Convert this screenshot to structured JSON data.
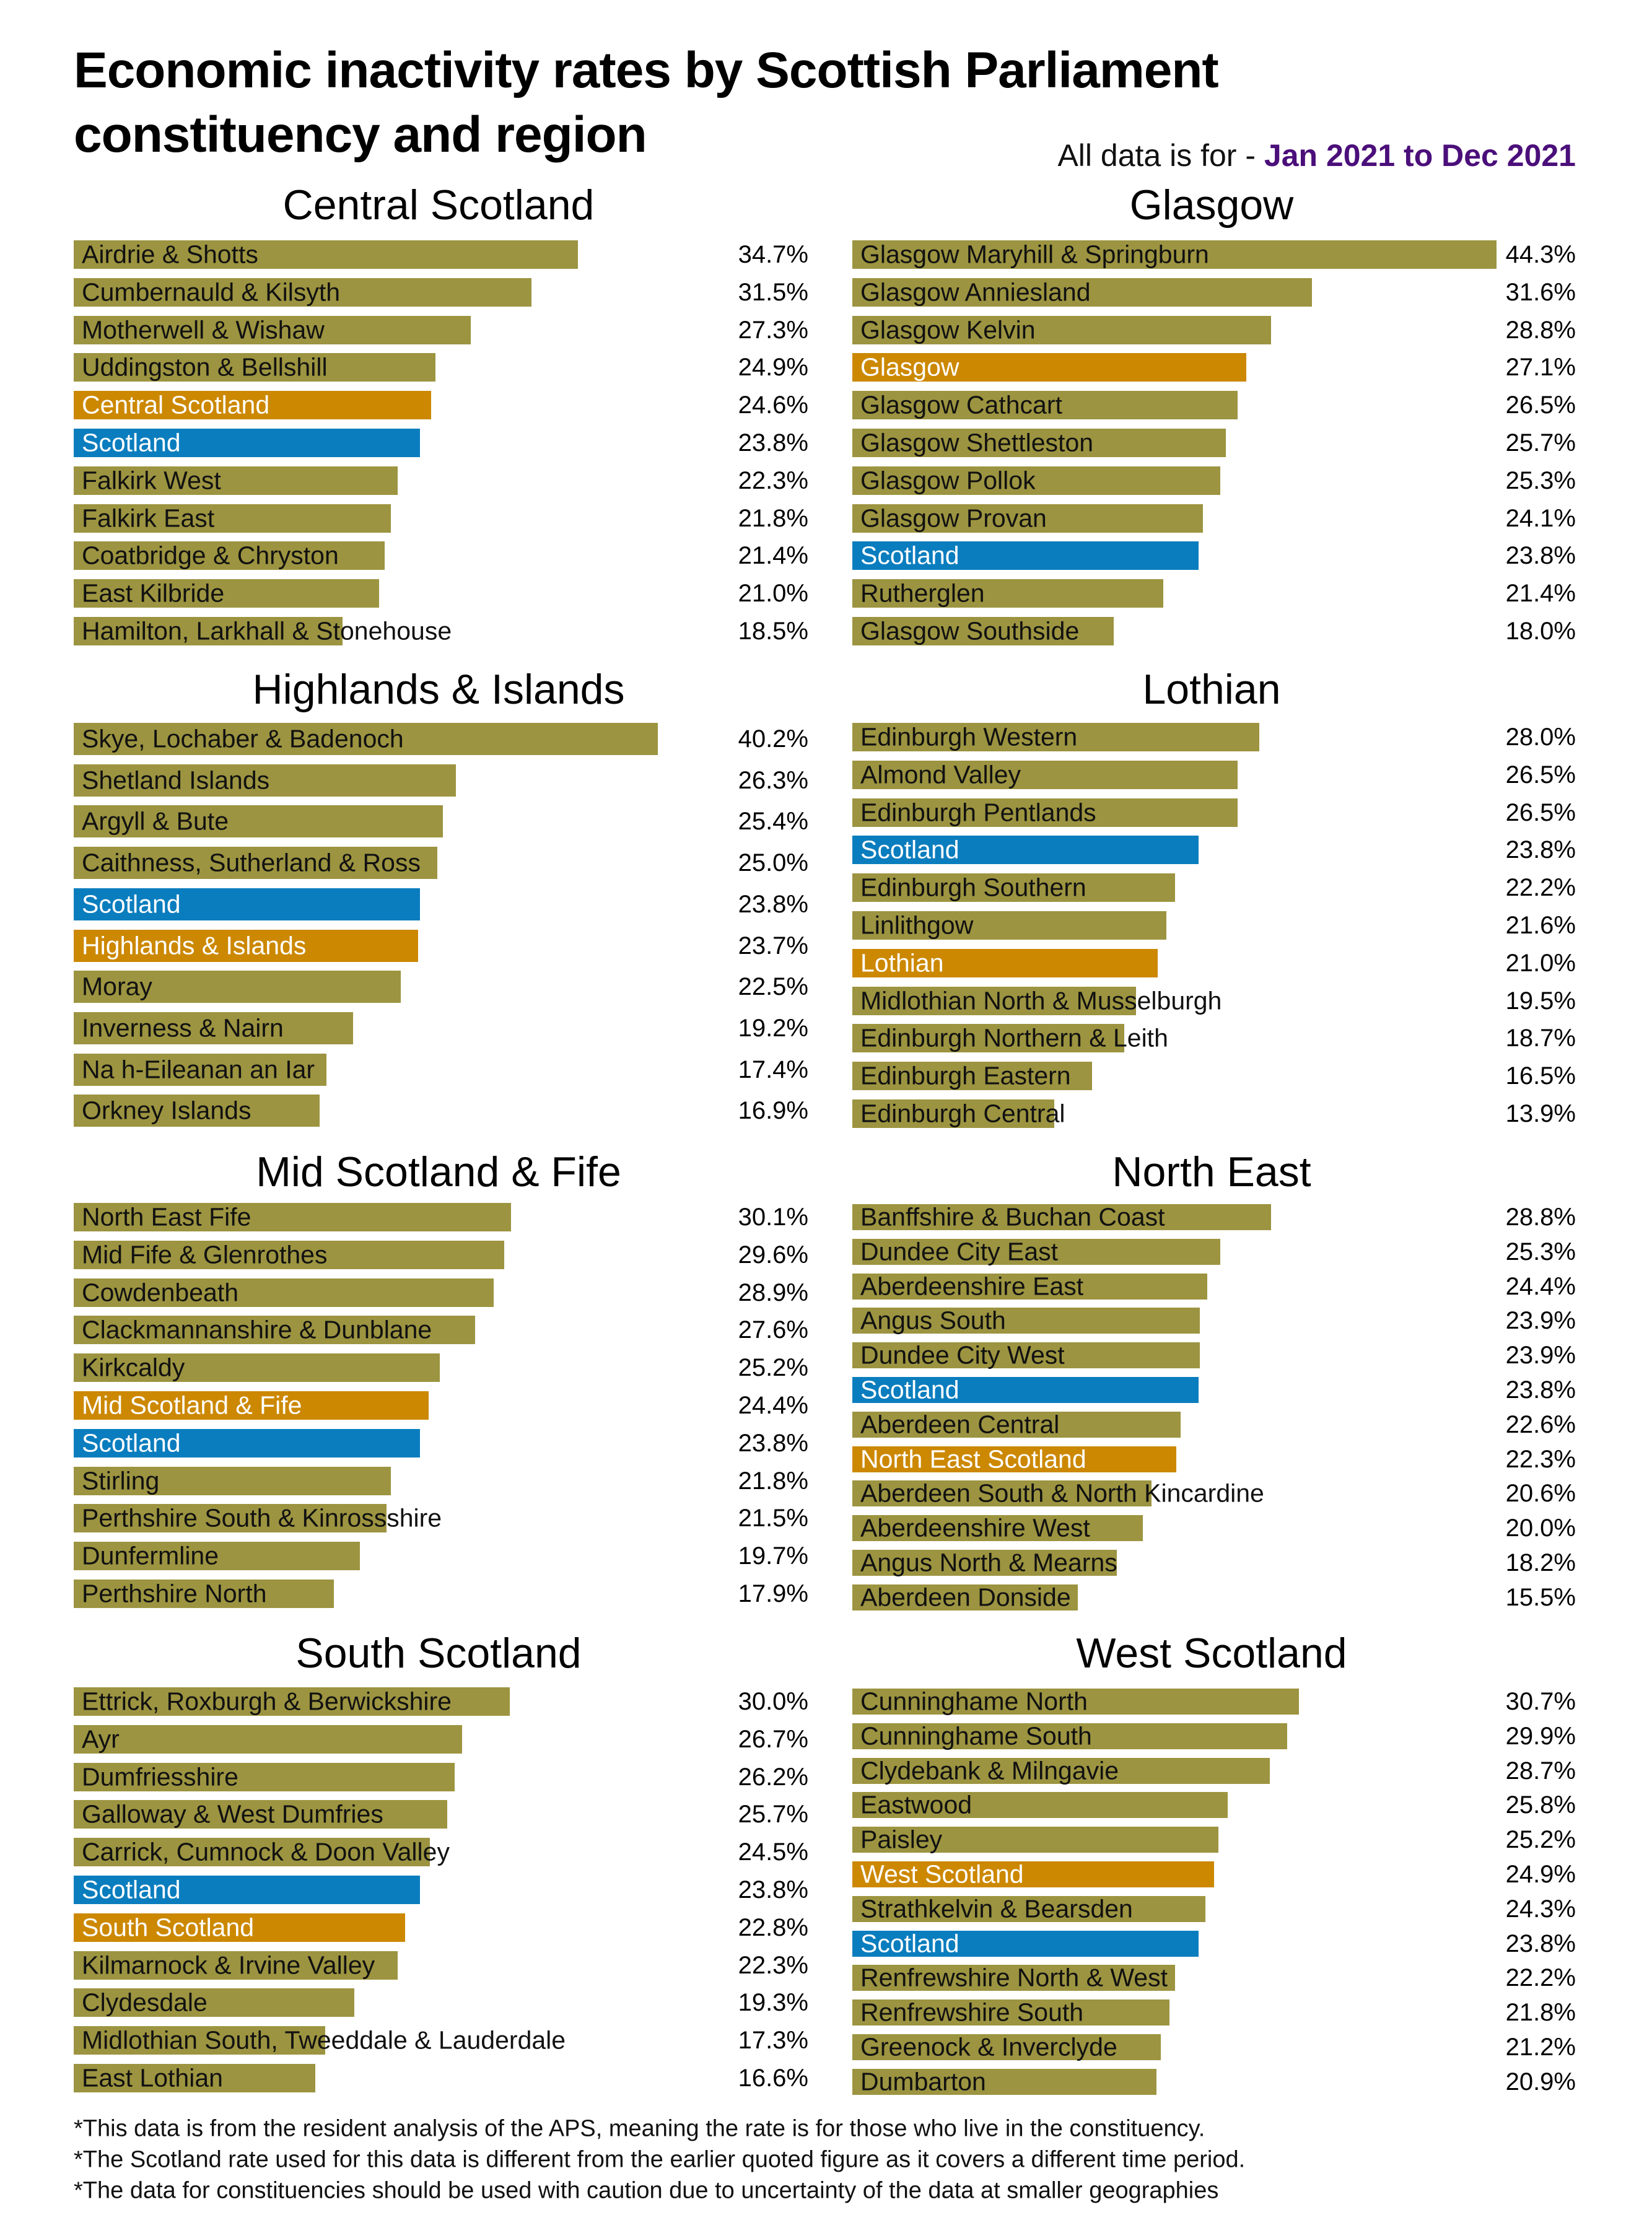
{
  "title_line1": "Economic inactivity rates by Scottish Parliament",
  "title_line2": "constituency and region",
  "subtitle_lead": "All data is for - ",
  "subtitle_period": "Jan 2021 to Dec 2021",
  "colors": {
    "constituency": "#9C9440",
    "region": "#CC8800",
    "scotland": "#0A7DBE",
    "period": "#4B0F7A"
  },
  "chart_data": {
    "type": "bar",
    "orientation": "horizontal",
    "unit": "%",
    "panels": [
      {
        "title": "Central Scotland",
        "rows": [
          {
            "label": "Airdrie & Shotts",
            "value": 34.7,
            "kind": "constituency"
          },
          {
            "label": "Cumbernauld & Kilsyth",
            "value": 31.5,
            "kind": "constituency"
          },
          {
            "label": "Motherwell & Wishaw",
            "value": 27.3,
            "kind": "constituency"
          },
          {
            "label": "Uddingston & Bellshill",
            "value": 24.9,
            "kind": "constituency"
          },
          {
            "label": "Central Scotland",
            "value": 24.6,
            "kind": "region"
          },
          {
            "label": "Scotland",
            "value": 23.8,
            "kind": "scotland"
          },
          {
            "label": "Falkirk West",
            "value": 22.3,
            "kind": "constituency"
          },
          {
            "label": "Falkirk East",
            "value": 21.8,
            "kind": "constituency"
          },
          {
            "label": "Coatbridge & Chryston",
            "value": 21.4,
            "kind": "constituency"
          },
          {
            "label": "East Kilbride",
            "value": 21.0,
            "kind": "constituency"
          },
          {
            "label": "Hamilton, Larkhall & Stonehouse",
            "value": 18.5,
            "kind": "constituency"
          }
        ]
      },
      {
        "title": "Glasgow",
        "rows": [
          {
            "label": "Glasgow Maryhill & Springburn",
            "value": 44.3,
            "kind": "constituency"
          },
          {
            "label": "Glasgow Anniesland",
            "value": 31.6,
            "kind": "constituency"
          },
          {
            "label": "Glasgow Kelvin",
            "value": 28.8,
            "kind": "constituency"
          },
          {
            "label": "Glasgow",
            "value": 27.1,
            "kind": "region"
          },
          {
            "label": "Glasgow Cathcart",
            "value": 26.5,
            "kind": "constituency"
          },
          {
            "label": "Glasgow Shettleston",
            "value": 25.7,
            "kind": "constituency"
          },
          {
            "label": "Glasgow Pollok",
            "value": 25.3,
            "kind": "constituency"
          },
          {
            "label": "Glasgow Provan",
            "value": 24.1,
            "kind": "constituency"
          },
          {
            "label": "Scotland",
            "value": 23.8,
            "kind": "scotland"
          },
          {
            "label": "Rutherglen",
            "value": 21.4,
            "kind": "constituency"
          },
          {
            "label": "Glasgow Southside",
            "value": 18.0,
            "kind": "constituency"
          }
        ]
      },
      {
        "title": "Highlands & Islands",
        "rows": [
          {
            "label": "Skye, Lochaber & Badenoch",
            "value": 40.2,
            "kind": "constituency"
          },
          {
            "label": "Shetland Islands",
            "value": 26.3,
            "kind": "constituency"
          },
          {
            "label": "Argyll & Bute",
            "value": 25.4,
            "kind": "constituency"
          },
          {
            "label": "Caithness, Sutherland & Ross",
            "value": 25.0,
            "kind": "constituency"
          },
          {
            "label": "Scotland",
            "value": 23.8,
            "kind": "scotland"
          },
          {
            "label": "Highlands & Islands",
            "value": 23.7,
            "kind": "region"
          },
          {
            "label": "Moray",
            "value": 22.5,
            "kind": "constituency"
          },
          {
            "label": "Inverness & Nairn",
            "value": 19.2,
            "kind": "constituency"
          },
          {
            "label": "Na h-Eileanan an Iar",
            "value": 17.4,
            "kind": "constituency"
          },
          {
            "label": "Orkney Islands",
            "value": 16.9,
            "kind": "constituency"
          }
        ]
      },
      {
        "title": "Lothian",
        "rows": [
          {
            "label": "Edinburgh Western",
            "value": 28.0,
            "kind": "constituency"
          },
          {
            "label": "Almond Valley",
            "value": 26.5,
            "kind": "constituency"
          },
          {
            "label": "Edinburgh Pentlands",
            "value": 26.5,
            "kind": "constituency"
          },
          {
            "label": "Scotland",
            "value": 23.8,
            "kind": "scotland"
          },
          {
            "label": "Edinburgh Southern",
            "value": 22.2,
            "kind": "constituency"
          },
          {
            "label": "Linlithgow",
            "value": 21.6,
            "kind": "constituency"
          },
          {
            "label": "Lothian",
            "value": 21.0,
            "kind": "region"
          },
          {
            "label": "Midlothian North & Musselburgh",
            "value": 19.5,
            "kind": "constituency"
          },
          {
            "label": "Edinburgh Northern & Leith",
            "value": 18.7,
            "kind": "constituency"
          },
          {
            "label": "Edinburgh Eastern",
            "value": 16.5,
            "kind": "constituency"
          },
          {
            "label": "Edinburgh Central",
            "value": 13.9,
            "kind": "constituency"
          }
        ]
      },
      {
        "title": "Mid Scotland & Fife",
        "rows": [
          {
            "label": "North East Fife",
            "value": 30.1,
            "kind": "constituency"
          },
          {
            "label": "Mid Fife & Glenrothes",
            "value": 29.6,
            "kind": "constituency"
          },
          {
            "label": "Cowdenbeath",
            "value": 28.9,
            "kind": "constituency"
          },
          {
            "label": "Clackmannanshire & Dunblane",
            "value": 27.6,
            "kind": "constituency"
          },
          {
            "label": "Kirkcaldy",
            "value": 25.2,
            "kind": "constituency"
          },
          {
            "label": "Mid Scotland & Fife",
            "value": 24.4,
            "kind": "region"
          },
          {
            "label": "Scotland",
            "value": 23.8,
            "kind": "scotland"
          },
          {
            "label": "Stirling",
            "value": 21.8,
            "kind": "constituency"
          },
          {
            "label": "Perthshire South & Kinrossshire",
            "value": 21.5,
            "kind": "constituency"
          },
          {
            "label": "Dunfermline",
            "value": 19.7,
            "kind": "constituency"
          },
          {
            "label": "Perthshire North",
            "value": 17.9,
            "kind": "constituency"
          }
        ]
      },
      {
        "title": "North East",
        "rows": [
          {
            "label": "Banffshire & Buchan Coast",
            "value": 28.8,
            "kind": "constituency"
          },
          {
            "label": "Dundee City East",
            "value": 25.3,
            "kind": "constituency"
          },
          {
            "label": "Aberdeenshire East",
            "value": 24.4,
            "kind": "constituency"
          },
          {
            "label": "Angus South",
            "value": 23.9,
            "kind": "constituency"
          },
          {
            "label": "Dundee City West",
            "value": 23.9,
            "kind": "constituency"
          },
          {
            "label": "Scotland",
            "value": 23.8,
            "kind": "scotland"
          },
          {
            "label": "Aberdeen Central",
            "value": 22.6,
            "kind": "constituency"
          },
          {
            "label": "North East Scotland",
            "value": 22.3,
            "kind": "region"
          },
          {
            "label": "Aberdeen South & North Kincardine",
            "value": 20.6,
            "kind": "constituency"
          },
          {
            "label": "Aberdeenshire West",
            "value": 20.0,
            "kind": "constituency"
          },
          {
            "label": "Angus North & Mearns",
            "value": 18.2,
            "kind": "constituency"
          },
          {
            "label": "Aberdeen Donside",
            "value": 15.5,
            "kind": "constituency"
          }
        ]
      },
      {
        "title": "South Scotland",
        "rows": [
          {
            "label": "Ettrick, Roxburgh & Berwickshire",
            "value": 30.0,
            "kind": "constituency"
          },
          {
            "label": "Ayr",
            "value": 26.7,
            "kind": "constituency"
          },
          {
            "label": "Dumfriesshire",
            "value": 26.2,
            "kind": "constituency"
          },
          {
            "label": "Galloway & West Dumfries",
            "value": 25.7,
            "kind": "constituency"
          },
          {
            "label": "Carrick, Cumnock & Doon Valley",
            "value": 24.5,
            "kind": "constituency"
          },
          {
            "label": "Scotland",
            "value": 23.8,
            "kind": "scotland"
          },
          {
            "label": "South Scotland",
            "value": 22.8,
            "kind": "region"
          },
          {
            "label": "Kilmarnock & Irvine Valley",
            "value": 22.3,
            "kind": "constituency"
          },
          {
            "label": "Clydesdale",
            "value": 19.3,
            "kind": "constituency"
          },
          {
            "label": "Midlothian South, Tweeddale & Lauderdale",
            "value": 17.3,
            "kind": "constituency"
          },
          {
            "label": "East Lothian",
            "value": 16.6,
            "kind": "constituency"
          }
        ]
      },
      {
        "title": "West Scotland",
        "rows": [
          {
            "label": "Cunninghame North",
            "value": 30.7,
            "kind": "constituency"
          },
          {
            "label": "Cunninghame South",
            "value": 29.9,
            "kind": "constituency"
          },
          {
            "label": "Clydebank & Milngavie",
            "value": 28.7,
            "kind": "constituency"
          },
          {
            "label": "Eastwood",
            "value": 25.8,
            "kind": "constituency"
          },
          {
            "label": "Paisley",
            "value": 25.2,
            "kind": "constituency"
          },
          {
            "label": "West Scotland",
            "value": 24.9,
            "kind": "region"
          },
          {
            "label": "Strathkelvin & Bearsden",
            "value": 24.3,
            "kind": "constituency"
          },
          {
            "label": "Scotland",
            "value": 23.8,
            "kind": "scotland"
          },
          {
            "label": "Renfrewshire North & West",
            "value": 22.2,
            "kind": "constituency"
          },
          {
            "label": "Renfrewshire South",
            "value": 21.8,
            "kind": "constituency"
          },
          {
            "label": "Greenock & Inverclyde",
            "value": 21.2,
            "kind": "constituency"
          },
          {
            "label": "Dumbarton",
            "value": 20.9,
            "kind": "constituency"
          }
        ]
      }
    ]
  },
  "footnotes": [
    "*This data is from the resident analysis of the APS, meaning the rate is for those who live in the constituency.",
    "*The Scotland rate used for this data is different from the earlier quoted figure as it covers a different time period.",
    "*The data for constituencies should be used with caution due to uncertainty of the data at smaller geographies"
  ]
}
